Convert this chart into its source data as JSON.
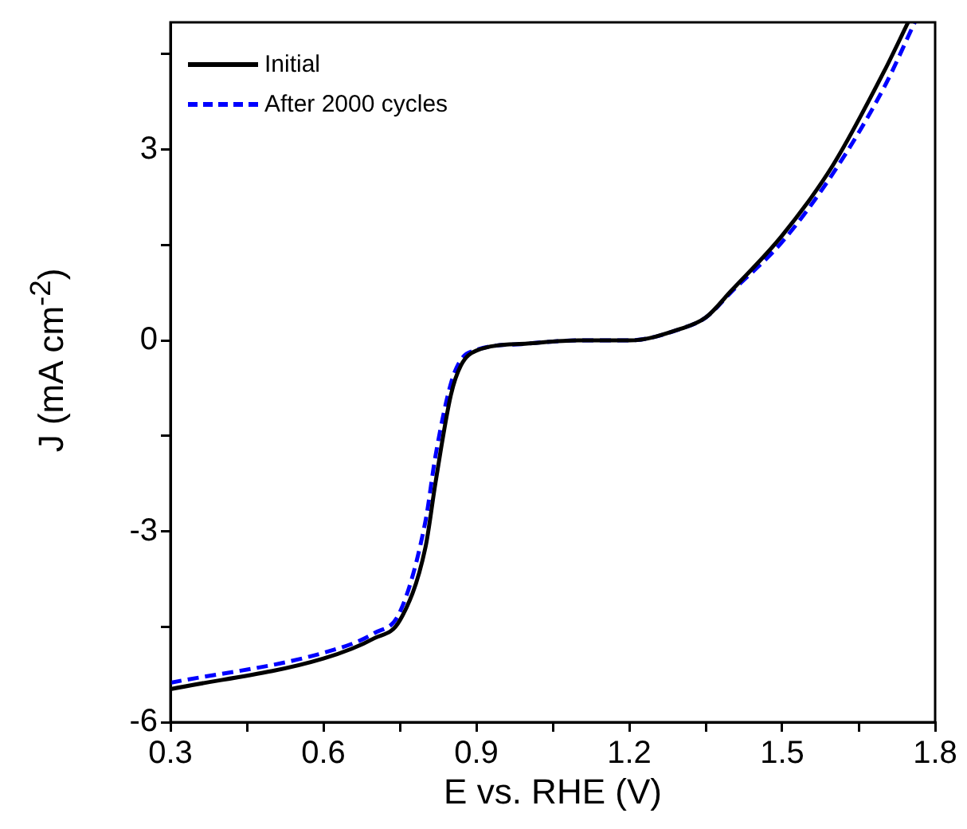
{
  "chart_data": {
    "type": "line",
    "xlabel": "E vs. RHE (V)",
    "ylabel": "J (mA cm$^{-2}$)",
    "xlim": [
      0.3,
      1.8
    ],
    "ylim": [
      -6,
      5
    ],
    "xticks": [
      0.3,
      {
        "value": 0.45,
        "label": null
      },
      0.6,
      {
        "value": 0.75,
        "label": null
      },
      0.9,
      {
        "value": 1.05,
        "label": null
      },
      1.2,
      {
        "value": 1.35,
        "label": null
      },
      1.5,
      {
        "value": 1.65,
        "label": null
      },
      1.8
    ],
    "yticks": [
      -6,
      {
        "value": -4.5,
        "label": null
      },
      -3,
      {
        "value": -1.5,
        "label": null
      },
      0,
      {
        "value": 1.5,
        "label": null
      },
      3,
      {
        "value": 4.5,
        "label": null
      }
    ],
    "grid": false,
    "legend": "top left",
    "marker": "none",
    "series": [
      {
        "name": "Initial",
        "color": "#000000",
        "line_style": "solid",
        "x": [
          0.3,
          0.6,
          0.7,
          0.75,
          0.8,
          0.82,
          0.85,
          0.87,
          0.9,
          1.0,
          1.1,
          1.2,
          1.3,
          1.35,
          1.4,
          1.5,
          1.6,
          1.7,
          1.747
        ],
        "values": [
          -5.48,
          -5.0,
          -4.68,
          -4.4,
          -3.26,
          -2.23,
          -0.86,
          -0.39,
          -0.16,
          -0.05,
          0.0,
          0.0,
          0.18,
          0.36,
          0.78,
          1.65,
          2.76,
          4.23,
          5.0
        ]
      },
      {
        "name": "After 2000 cycles",
        "color": "#0000ff",
        "line_style": "dashed",
        "x": [
          0.3,
          0.6,
          0.7,
          0.75,
          0.8,
          0.82,
          0.85,
          0.87,
          0.9,
          1.0,
          1.1,
          1.2,
          1.3,
          1.35,
          1.4,
          1.5,
          1.6,
          1.7,
          1.76
        ],
        "values": [
          -5.38,
          -4.91,
          -4.6,
          -4.27,
          -2.85,
          -1.81,
          -0.68,
          -0.3,
          -0.15,
          -0.05,
          0.0,
          0.0,
          0.18,
          0.36,
          0.76,
          1.55,
          2.63,
          3.98,
          5.0
        ]
      }
    ]
  }
}
